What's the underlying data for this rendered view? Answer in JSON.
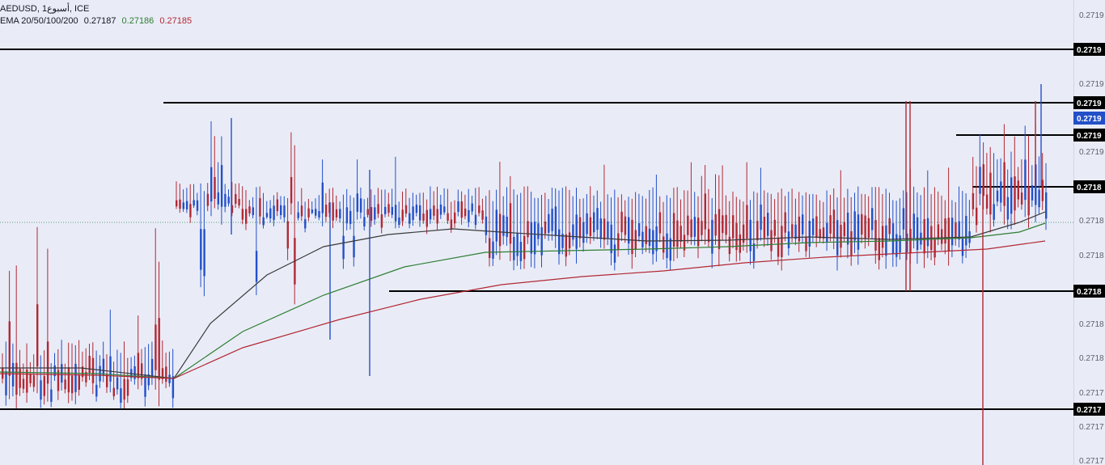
{
  "header": {
    "symbol_line": "AEDUSD, 1أسبوع, ICE",
    "ema_label": "EMA 20/50/100/200",
    "ema_values": [
      {
        "value": "0.27187",
        "color": "#131722"
      },
      {
        "value": "0.27186",
        "color": "#2e7d32"
      },
      {
        "value": "0.27185",
        "color": "#b22833"
      }
    ]
  },
  "colors": {
    "background": "#e9ecf7",
    "up_bar": "#2350c8",
    "down_bar": "#b22833",
    "ema_fast": "#3a3a3a",
    "ema_mid": "#2e7d32",
    "ema_slow": "#b22833",
    "hline": "#000000",
    "current_price_badge": "#2350c8"
  },
  "chart_data": {
    "type": "ohlc",
    "price_axis_ticks": [
      "0.2719",
      "0.2719",
      "0.2719",
      "0.2718",
      "0.2718",
      "0.2718",
      "0.2718",
      "0.2717",
      "0.2717",
      "0.2717",
      "0.2717"
    ],
    "horizontal_line_labels": [
      "0.2719",
      "0.2719",
      "0.2719",
      "0.2718",
      "0.2718",
      "0.2717"
    ],
    "current_price_label": "0.2719",
    "ema_series": [
      "EMA 20",
      "EMA 50",
      "EMA 100",
      "EMA 200"
    ],
    "bar_count": 300
  }
}
